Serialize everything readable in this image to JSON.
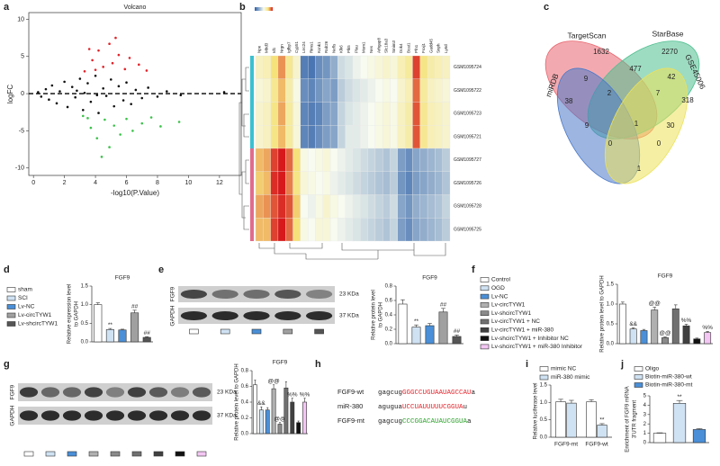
{
  "panel_labels": [
    "a",
    "b",
    "c",
    "d",
    "e",
    "f",
    "g",
    "h",
    "i",
    "j"
  ],
  "chart_data": [
    {
      "type": "scatter",
      "title": "Volcano",
      "xlabel": "-log10(P.Value)",
      "ylabel": "logFC",
      "xlim": [
        -0.3,
        13.4
      ],
      "ylim": [
        -11,
        10.9
      ],
      "xticks": [
        0,
        2,
        4,
        6,
        8,
        10,
        12
      ],
      "yticks": [
        -10,
        -5,
        0,
        5,
        10
      ],
      "hline": 0,
      "series": [
        {
          "color": "#111111",
          "x": [
            0.3,
            0.5,
            0.8,
            1,
            1.2,
            1.5,
            1.7,
            2,
            2.2,
            2.5,
            2.7,
            3,
            3.2,
            3.5,
            3.7,
            4,
            4.2,
            4.5,
            4.7,
            5,
            5.2,
            5.5,
            5.8,
            6,
            6.3,
            6.6,
            7,
            7.4,
            8,
            8.6,
            9.5,
            12.3,
            3.3,
            4.1,
            2.8
          ],
          "y": [
            0.2,
            -0.4,
            0.6,
            -0.8,
            1.1,
            -1.3,
            0.3,
            1.6,
            -1.8,
            0.9,
            -0.5,
            2,
            -2.2,
            1.4,
            -1.1,
            2.4,
            -2.6,
            0.7,
            -0.3,
            1.9,
            -1.7,
            1,
            -0.9,
            1.5,
            -1.4,
            0.5,
            -0.6,
            0.8,
            -0.4,
            0.3,
            -0.2,
            0.2,
            0.1,
            -0.2,
            0.4
          ]
        },
        {
          "color": "#e0242b",
          "x": [
            3.3,
            3.8,
            4.2,
            4.5,
            4.9,
            5.1,
            5.5,
            5.9,
            6.2,
            6.8,
            4,
            3.6,
            7.3,
            5.3
          ],
          "y": [
            3,
            4.5,
            5.8,
            3.6,
            6.7,
            4.1,
            5.2,
            3.3,
            4.8,
            3.9,
            3.2,
            6,
            3.1,
            7.5
          ]
        },
        {
          "color": "#3cc24a",
          "x": [
            3.2,
            3.7,
            4.1,
            4.6,
            4.9,
            5.2,
            5.6,
            6,
            6.4,
            7,
            7.6,
            8.2,
            9.4,
            4.4,
            3.5
          ],
          "y": [
            -3,
            -4.6,
            -6,
            -3.5,
            -7.2,
            -4.3,
            -5.5,
            -3.4,
            -5,
            -4,
            -3.2,
            -4.4,
            -3.8,
            -8.5,
            -3.3
          ]
        }
      ]
    },
    {
      "type": "heatmap",
      "clim": [
        -2,
        2
      ],
      "columns": [
        "Npe",
        "Mbd3",
        "Id1",
        "Nrgn",
        "Igfbp7",
        "Cyp51",
        "Lrrc24",
        "Rims1",
        "Kcnk1",
        "Rab26",
        "Nefls",
        "Klk6",
        "Plk5",
        "Plau",
        "Mum1",
        "Nes",
        "Arhgap8",
        "Slc18a3",
        "Smim3",
        "Dok4",
        "Bcat1",
        "Pfn1",
        "Foxj1",
        "Gadd45",
        "Snph",
        "Ly6d"
      ],
      "rows": [
        "GSM1095724",
        "GSM1095722",
        "GSM1095723",
        "GSM1095721",
        "GSM1095727",
        "GSM1095726",
        "GSM1095728",
        "GSM1095725"
      ],
      "values": [
        [
          0.4,
          0.5,
          1.0,
          1.4,
          0.8,
          0.3,
          -1.6,
          -1.7,
          -1.4,
          -1.3,
          -1.0,
          -0.4,
          -0.3,
          -0.1,
          0.0,
          0.1,
          0.2,
          0.3,
          0.2,
          0.5,
          0.7,
          1.8,
          0.9,
          0.6,
          0.5,
          0.4
        ],
        [
          0.2,
          0.3,
          0.8,
          1.2,
          0.6,
          0.1,
          -1.4,
          -1.5,
          -1.3,
          -1.1,
          -1.2,
          -0.6,
          -0.4,
          -0.3,
          -0.2,
          -0.1,
          0.0,
          0.1,
          0.0,
          0.3,
          0.5,
          1.6,
          0.7,
          0.4,
          0.3,
          0.2
        ],
        [
          0.3,
          0.4,
          0.9,
          1.3,
          0.7,
          0.2,
          -1.5,
          -1.6,
          -1.5,
          -1.2,
          -1.1,
          -0.5,
          -0.3,
          -0.2,
          -0.1,
          0.0,
          0.1,
          0.2,
          0.1,
          0.4,
          0.6,
          1.7,
          0.8,
          0.5,
          0.4,
          0.3
        ],
        [
          0.3,
          0.4,
          0.9,
          1.2,
          0.7,
          0.2,
          -1.5,
          -1.6,
          -1.4,
          -1.2,
          -1.1,
          -0.5,
          -0.2,
          -0.2,
          -0.1,
          0.0,
          0.1,
          0.2,
          0.1,
          0.4,
          0.6,
          1.7,
          0.8,
          0.5,
          0.4,
          0.3
        ],
        [
          1.2,
          1.3,
          1.8,
          2.0,
          1.6,
          1.0,
          0.1,
          0.0,
          0.1,
          0.2,
          0.0,
          -0.1,
          -0.2,
          -0.3,
          -0.4,
          -0.5,
          -0.6,
          -0.7,
          -0.5,
          -1.2,
          -1.4,
          -1.1,
          -1.0,
          -0.9,
          -0.8,
          -0.6
        ],
        [
          1.1,
          1.2,
          1.9,
          2.0,
          1.5,
          0.9,
          0.2,
          0.1,
          0.0,
          0.1,
          -0.1,
          -0.2,
          -0.3,
          -0.4,
          -0.5,
          -0.6,
          -0.7,
          -0.8,
          -0.6,
          -1.3,
          -1.5,
          -1.2,
          -1.1,
          -1.0,
          -0.9,
          -0.7
        ],
        [
          1.3,
          1.4,
          1.7,
          1.9,
          1.7,
          1.1,
          0.0,
          -0.1,
          0.1,
          0.3,
          0.1,
          0.0,
          -0.1,
          -0.2,
          -0.3,
          -0.4,
          -0.5,
          -0.6,
          -0.4,
          -1.1,
          -1.3,
          -1.0,
          -0.9,
          -0.8,
          -0.7,
          -0.5
        ],
        [
          1.2,
          1.2,
          1.8,
          2.0,
          1.6,
          1.0,
          0.1,
          0.0,
          0.2,
          0.2,
          0.0,
          -0.1,
          -0.2,
          -0.3,
          -0.4,
          -0.5,
          -0.6,
          -0.7,
          -0.5,
          -1.2,
          -1.4,
          -1.1,
          -1.0,
          -0.9,
          -0.8,
          -0.6
        ]
      ]
    },
    {
      "type": "bar",
      "title": "FGF9",
      "ylabel": [
        "Relative expression level",
        "to GAPDH"
      ],
      "legend": [
        "sham",
        "SCI",
        "Lv-NC",
        "Lv-circTYW1",
        "Lv-shcircTYW1"
      ],
      "colors": [
        "#ffffff",
        "#cfe2f3",
        "#4a8fd8",
        "#a0a0a0",
        "#555555"
      ],
      "values": [
        1.0,
        0.33,
        0.32,
        0.78,
        0.12
      ],
      "errors": [
        0.05,
        0.03,
        0.02,
        0.07,
        0.02
      ],
      "annotations": [
        null,
        "**",
        null,
        "##",
        "##"
      ],
      "ylim": [
        0,
        1.5
      ],
      "yticks": [
        {
          "value": 0,
          "label": "0.0"
        },
        0.5,
        {
          "value": 1,
          "label": "1.0"
        },
        1.5
      ]
    },
    {
      "type": "bar",
      "title": "FGF9",
      "ylabel": [
        "Relative protein level",
        "to GAPDH"
      ],
      "colors": [
        "#ffffff",
        "#cfe2f3",
        "#4a8fd8",
        "#a0a0a0",
        "#555555"
      ],
      "values": [
        0.55,
        0.23,
        0.25,
        0.44,
        0.1
      ],
      "errors": [
        0.06,
        0.03,
        0.03,
        0.05,
        0.02
      ],
      "annotations": [
        null,
        "**",
        null,
        "##",
        "##"
      ],
      "ylim": [
        0,
        0.8
      ],
      "yticks": [
        {
          "value": 0,
          "label": "0.0"
        },
        0.2,
        0.4,
        0.6,
        0.8
      ]
    },
    {
      "type": "bar",
      "title": "FGF9",
      "ylabel": [
        "Relative protein level to GAPDH"
      ],
      "legend": [
        "Control",
        "OGD",
        "Lv-NC",
        "Lv-circTYW1",
        "Lv-shcircTYW1",
        "Lv-circTYW1 + NC",
        "Lv-circTYW1 + miR-380",
        "Lv-shcircTYW1 + Inhibitor NC",
        "Lv-shcircTYW1 + miR-380 Inhibitor"
      ],
      "colors": [
        "#ffffff",
        "#cfe2f3",
        "#4a8fd8",
        "#b0b0b0",
        "#8a8a8a",
        "#707070",
        "#404040",
        "#111111",
        "#f3c6f3"
      ],
      "values": [
        1.0,
        0.37,
        0.33,
        0.85,
        0.15,
        0.88,
        0.45,
        0.12,
        0.28
      ],
      "errors": [
        0.05,
        0.03,
        0.03,
        0.07,
        0.02,
        0.1,
        0.04,
        0.02,
        0.03
      ],
      "annotations": [
        null,
        "&&",
        null,
        "@@",
        "@@",
        null,
        "%%",
        null,
        "%%"
      ],
      "ylim": [
        0,
        1.5
      ],
      "yticks": [
        {
          "value": 0,
          "label": "0.0"
        },
        0.5,
        {
          "value": 1,
          "label": "1.0"
        },
        1.5
      ]
    },
    {
      "type": "bar",
      "title": "FGF9",
      "ylabel": [
        "Relative protein level to GAPDH"
      ],
      "colors": [
        "#ffffff",
        "#cfe2f3",
        "#4a8fd8",
        "#b0b0b0",
        "#8a8a8a",
        "#707070",
        "#404040",
        "#111111",
        "#f3c6f3"
      ],
      "values": [
        0.62,
        0.3,
        0.3,
        0.57,
        0.12,
        0.58,
        0.4,
        0.14,
        0.4
      ],
      "errors": [
        0.06,
        0.04,
        0.03,
        0.05,
        0.02,
        0.08,
        0.05,
        0.02,
        0.05
      ],
      "annotations": [
        null,
        "&&",
        null,
        "@@",
        "@@",
        null,
        "%%",
        null,
        "%%"
      ],
      "ylim": [
        0,
        0.8
      ],
      "yticks": [
        {
          "value": 0,
          "label": "0.0"
        },
        0.2,
        0.4,
        0.6,
        0.8
      ]
    },
    {
      "type": "grouped_bar",
      "ylabel": [
        "Relative luciferase level"
      ],
      "categories": [
        "FGF9-mt",
        "FGF9-wt"
      ],
      "series": [
        {
          "name": "mimic NC",
          "color": "#ffffff",
          "values": [
            1.02,
            1.02
          ],
          "errors": [
            0.07,
            0.06
          ],
          "annotations": [
            null,
            null
          ]
        },
        {
          "name": "miR-380 mimic",
          "color": "#cfe2f3",
          "values": [
            0.98,
            0.35
          ],
          "errors": [
            0.08,
            0.04
          ],
          "annotations": [
            null,
            "**"
          ]
        }
      ],
      "ylim": [
        0,
        1.5
      ],
      "yticks": [
        {
          "value": 0,
          "label": "0.0"
        },
        0.5,
        {
          "value": 1,
          "label": "1.0"
        },
        1.5
      ]
    },
    {
      "type": "bar",
      "ylabel": [
        "Enrichment of FGF9 mRNA",
        "3'UTR fragment"
      ],
      "legend": [
        "Oligo",
        "Biotin-miR-380-wt",
        "Biotin-miR-380-mt"
      ],
      "colors": [
        "#ffffff",
        "#cfe2f3",
        "#4a8fd8"
      ],
      "values": [
        1.0,
        4.2,
        1.4
      ],
      "errors": [
        0.05,
        0.3,
        0.1
      ],
      "annotations": [
        null,
        "**",
        null
      ],
      "ylim": [
        0,
        5
      ],
      "yticks": [
        0,
        1,
        2,
        3,
        4,
        5
      ]
    }
  ],
  "venn": {
    "sets": [
      {
        "name": "TargetScan",
        "color": "#e8656f"
      },
      {
        "name": "StarBase",
        "color": "#4fbf8f"
      },
      {
        "name": "miRDB",
        "color": "#4a78c8"
      },
      {
        "name": "GSE45006",
        "color": "#ece25a"
      }
    ],
    "regions": [
      1632,
      2270,
      318,
      38,
      477,
      42,
      9,
      2,
      7,
      30,
      9,
      1,
      0,
      0,
      1
    ]
  },
  "blots": [
    {
      "rows": [
        "FGF9",
        "GAPDH"
      ],
      "sizes": [
        "23 KDa",
        "37 KDa"
      ]
    },
    {
      "rows": [
        "FGF9",
        "GAPDH"
      ],
      "sizes": [
        "23 KDa",
        "37 KDa"
      ]
    }
  ],
  "sequences": [
    {
      "label": "FGF9-wt",
      "parts": [
        "gagcug",
        "GGGCCUGUAAUAGCCAU",
        "a"
      ],
      "color": "#e0242b"
    },
    {
      "label": "miR-380",
      "parts": [
        "agugua",
        "UCCUAUUUUUCGGUA",
        "u"
      ],
      "color": "#e0242b"
    },
    {
      "label": "FGF9-mt",
      "parts": [
        "gagcug",
        "CCCGGACAUAUCGGUA",
        "a"
      ],
      "color": "#2ca02c"
    }
  ]
}
